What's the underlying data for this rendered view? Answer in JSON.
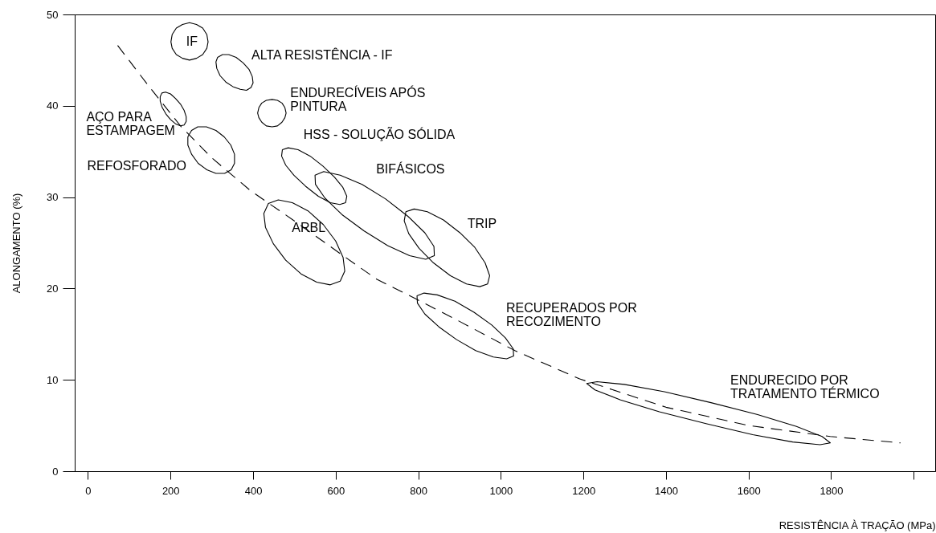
{
  "chart_data": {
    "type": "line",
    "xlabel": "RESISTÊNCIA À TRAÇÃO (MPa)",
    "ylabel": "ALONGAMENTO (%)",
    "xlim": [
      -32,
      2052
    ],
    "ylim": [
      0,
      50
    ],
    "xticks": [
      0,
      200,
      400,
      600,
      800,
      1000,
      1200,
      1400,
      1600,
      1800,
      {
        "value": 2000,
        "label": null
      }
    ],
    "yticks": [
      0,
      10,
      20,
      30,
      40,
      50
    ],
    "grid": false,
    "marker": "none",
    "series": [
      {
        "color": "#000000",
        "line_style": "dashed",
        "x": [
          72,
          150,
          226,
          300,
          394,
          500,
          621,
          700,
          797,
          900,
          1034,
          1191,
          1400,
          1600,
          1798,
          1968
        ],
        "values": [
          46.6,
          42.0,
          37.7,
          34.3,
          30.7,
          27.4,
          23.5,
          21.0,
          18.8,
          16.4,
          13.2,
          10.1,
          7.0,
          5.0,
          3.8,
          3.1
        ]
      },
      {
        "color": "#000000",
        "line_style": "solid",
        "x": [
          291,
          288,
          278,
          263,
          246,
          229,
          214,
          204,
          201,
          204,
          214,
          229,
          246,
          263,
          278,
          288,
          291,
          288
        ],
        "values": [
          47.0,
          47.8,
          48.5,
          48.9,
          49.1,
          48.9,
          48.5,
          47.8,
          47.0,
          46.3,
          45.6,
          45.2,
          45.0,
          45.2,
          45.6,
          46.3,
          47.0,
          47.8
        ]
      },
      {
        "color": "#000000",
        "line_style": "solid",
        "x": [
          395,
          384,
          369,
          351,
          334,
          320,
          312,
          310,
          314,
          326,
          341,
          359,
          376,
          390,
          398,
          400,
          395,
          384
        ],
        "values": [
          42.0,
          41.7,
          41.8,
          42.1,
          42.6,
          43.3,
          44.1,
          44.8,
          45.3,
          45.6,
          45.6,
          45.3,
          44.7,
          44.0,
          43.2,
          42.5,
          42.0,
          41.7
        ]
      },
      {
        "color": "#000000",
        "line_style": "solid",
        "x": [
          480,
          477,
          470,
          459,
          446,
          432,
          421,
          414,
          411,
          414,
          421,
          432,
          446,
          459,
          470,
          477,
          480,
          477
        ],
        "values": [
          39.2,
          39.8,
          40.3,
          40.6,
          40.7,
          40.6,
          40.3,
          39.8,
          39.2,
          38.7,
          38.2,
          37.8,
          37.7,
          37.8,
          38.2,
          38.7,
          39.2,
          39.8
        ]
      },
      {
        "color": "#000000",
        "line_style": "solid",
        "x": [
          233,
          224,
          213,
          200,
          189,
          180,
          175,
          175,
          179,
          188,
          200,
          212,
          224,
          233,
          238,
          238,
          233,
          224
        ],
        "values": [
          37.9,
          37.8,
          38.0,
          38.5,
          39.1,
          39.8,
          40.5,
          41.0,
          41.4,
          41.5,
          41.3,
          40.8,
          40.2,
          39.5,
          38.8,
          38.3,
          37.9,
          37.8
        ]
      },
      {
        "color": "#000000",
        "line_style": "solid",
        "x": [
          347,
          331,
          310,
          288,
          267,
          251,
          242,
          242,
          251,
          266,
          287,
          310,
          330,
          346,
          355,
          355,
          347,
          331
        ],
        "values": [
          33.0,
          32.6,
          32.6,
          33.0,
          33.7,
          34.7,
          35.7,
          36.6,
          37.3,
          37.7,
          37.7,
          37.3,
          36.6,
          35.7,
          34.7,
          33.7,
          33.0,
          32.6
        ]
      },
      {
        "color": "#000000",
        "line_style": "solid",
        "x": [
          624,
          610,
          587,
          558,
          527,
          499,
          479,
          469,
          471,
          485,
          509,
          538,
          569,
          597,
          617,
          627,
          624,
          610
        ],
        "values": [
          29.4,
          29.2,
          29.4,
          30.1,
          31.2,
          32.4,
          33.5,
          34.5,
          35.2,
          35.4,
          35.2,
          34.5,
          33.4,
          32.2,
          31.1,
          30.1,
          29.4,
          29.2
        ]
      },
      {
        "color": "#000000",
        "line_style": "solid",
        "x": [
          839,
          818,
          779,
          726,
          669,
          615,
          574,
          551,
          550,
          571,
          611,
          664,
          721,
          775,
          816,
          838,
          839,
          818
        ],
        "values": [
          23.6,
          23.2,
          23.6,
          24.7,
          26.3,
          28.1,
          29.9,
          31.4,
          32.4,
          32.8,
          32.4,
          31.4,
          29.8,
          27.9,
          26.1,
          24.6,
          23.6,
          23.2
        ]
      },
      {
        "color": "#000000",
        "line_style": "solid",
        "x": [
          611,
          587,
          554,
          516,
          479,
          449,
          430,
          426,
          437,
          461,
          495,
          533,
          570,
          600,
          618,
          622,
          611,
          587
        ],
        "values": [
          20.8,
          20.4,
          20.7,
          21.6,
          23.1,
          24.9,
          26.7,
          28.2,
          29.3,
          29.7,
          29.4,
          28.5,
          27.0,
          25.2,
          23.4,
          21.9,
          20.8,
          20.4
        ]
      },
      {
        "color": "#000000",
        "line_style": "solid",
        "x": [
          968,
          949,
          917,
          878,
          837,
          802,
          777,
          766,
          770,
          790,
          822,
          861,
          901,
          937,
          962,
          973,
          968,
          949
        ],
        "values": [
          20.5,
          20.2,
          20.5,
          21.4,
          22.8,
          24.4,
          26.0,
          27.4,
          28.4,
          28.7,
          28.4,
          27.5,
          26.1,
          24.5,
          22.8,
          21.4,
          20.5,
          20.2
        ]
      },
      {
        "color": "#000000",
        "line_style": "solid",
        "x": [
          1031,
          1014,
          982,
          939,
          893,
          850,
          816,
          798,
          797,
          814,
          846,
          889,
          935,
          978,
          1011,
          1030,
          1031,
          1014
        ],
        "values": [
          12.6,
          12.3,
          12.5,
          13.2,
          14.4,
          15.8,
          17.2,
          18.4,
          19.2,
          19.5,
          19.3,
          18.6,
          17.4,
          16.0,
          14.6,
          13.4,
          12.6,
          12.3
        ]
      },
      {
        "color": "#000000",
        "line_style": "solid",
        "x": [
          1798,
          1773,
          1707,
          1610,
          1497,
          1384,
          1290,
          1228,
          1208,
          1233,
          1299,
          1396,
          1509,
          1622,
          1716,
          1778,
          1798,
          1773
        ],
        "values": [
          3.1,
          2.9,
          3.2,
          4.0,
          5.2,
          6.5,
          7.8,
          8.9,
          9.6,
          9.8,
          9.5,
          8.7,
          7.5,
          6.2,
          4.9,
          3.8,
          3.1,
          2.9
        ]
      }
    ],
    "annotations": [
      "IF",
      "ALTA RESISTÊNCIA - IF",
      "ENDURECÍVEIS APÓS\nPINTURA",
      "AÇO PARA\nESTAMPAGEM",
      "REFOSFORADO",
      "HSS - SOLUÇÃO SÓLIDA",
      "BIFÁSICOS",
      "ARBL",
      "TRIP",
      "RECUPERADOS POR\nRECOZIMENTO",
      "ENDURECIDO POR\nTRATAMENTO TÉRMICO"
    ]
  }
}
